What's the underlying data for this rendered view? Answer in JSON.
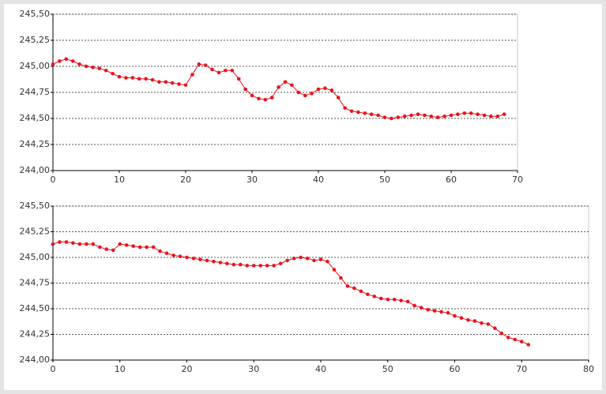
{
  "chart_data": [
    {
      "type": "line",
      "grid": true,
      "x": [
        0,
        1,
        2,
        3,
        4,
        5,
        6,
        7,
        8,
        9,
        10,
        11,
        12,
        13,
        14,
        15,
        16,
        17,
        18,
        19,
        20,
        21,
        22,
        23,
        24,
        25,
        26,
        27,
        28,
        29,
        30,
        31,
        32,
        33,
        34,
        35,
        36,
        37,
        38,
        39,
        40,
        41,
        42,
        43,
        44,
        45,
        46,
        47,
        48,
        49,
        50,
        51,
        52,
        53,
        54,
        55,
        56,
        57,
        58,
        59,
        60,
        61,
        62,
        63,
        64,
        65,
        66,
        67,
        68
      ],
      "series": [
        {
          "color": "#e8141e",
          "values": [
            245.02,
            245.05,
            245.07,
            245.05,
            245.02,
            245.0,
            244.99,
            244.98,
            244.96,
            244.93,
            244.9,
            244.89,
            244.89,
            244.88,
            244.88,
            244.87,
            244.85,
            244.85,
            244.84,
            244.83,
            244.82,
            244.92,
            245.02,
            245.01,
            244.97,
            244.94,
            244.96,
            244.96,
            244.88,
            244.78,
            244.72,
            244.69,
            244.68,
            244.7,
            244.8,
            244.85,
            244.82,
            244.75,
            244.72,
            244.74,
            244.78,
            244.79,
            244.77,
            244.7,
            244.6,
            244.57,
            244.56,
            244.55,
            244.54,
            244.53,
            244.51,
            244.5,
            244.51,
            244.52,
            244.53,
            244.54,
            244.53,
            244.52,
            244.51,
            244.52,
            244.53,
            244.54,
            244.55,
            244.55,
            244.54,
            244.53,
            244.52,
            244.52,
            244.54
          ]
        }
      ],
      "xlim": [
        0,
        70
      ],
      "xticks": [
        0,
        10,
        20,
        30,
        40,
        50,
        60,
        70
      ],
      "ylim": [
        244,
        245.5
      ],
      "yticks": [
        {
          "value": 244,
          "label": "244,00"
        },
        {
          "value": 244.25,
          "label": "244,25"
        },
        {
          "value": 244.5,
          "label": "244,50"
        },
        {
          "value": 244.75,
          "label": "244,75"
        },
        {
          "value": 245,
          "label": "245,00"
        },
        {
          "value": 245.25,
          "label": "245,25"
        },
        {
          "value": 245.5,
          "label": "245,50"
        }
      ]
    },
    {
      "type": "line",
      "grid": true,
      "x": [
        0,
        1,
        2,
        3,
        4,
        5,
        6,
        7,
        8,
        9,
        10,
        11,
        12,
        13,
        14,
        15,
        16,
        17,
        18,
        19,
        20,
        21,
        22,
        23,
        24,
        25,
        26,
        27,
        28,
        29,
        30,
        31,
        32,
        33,
        34,
        35,
        36,
        37,
        38,
        39,
        40,
        41,
        42,
        43,
        44,
        45,
        46,
        47,
        48,
        49,
        50,
        51,
        52,
        53,
        54,
        55,
        56,
        57,
        58,
        59,
        60,
        61,
        62,
        63,
        64,
        65,
        66,
        67,
        68,
        69,
        70,
        71
      ],
      "series": [
        {
          "color": "#e8141e",
          "values": [
            245.13,
            245.15,
            245.15,
            245.14,
            245.13,
            245.13,
            245.13,
            245.1,
            245.08,
            245.07,
            245.13,
            245.12,
            245.11,
            245.1,
            245.1,
            245.1,
            245.06,
            245.04,
            245.02,
            245.01,
            245.0,
            244.99,
            244.98,
            244.97,
            244.96,
            244.95,
            244.94,
            244.93,
            244.93,
            244.92,
            244.92,
            244.92,
            244.92,
            244.92,
            244.94,
            244.97,
            244.99,
            245.0,
            244.99,
            244.97,
            244.98,
            244.96,
            244.88,
            244.8,
            244.72,
            244.7,
            244.67,
            244.64,
            244.62,
            244.6,
            244.59,
            244.59,
            244.58,
            244.57,
            244.53,
            244.51,
            244.49,
            244.48,
            244.47,
            244.46,
            244.43,
            244.41,
            244.39,
            244.38,
            244.36,
            244.35,
            244.31,
            244.26,
            244.22,
            244.2,
            244.18,
            244.15
          ]
        }
      ],
      "xlim": [
        0,
        80
      ],
      "xticks": [
        0,
        10,
        20,
        30,
        40,
        50,
        60,
        70,
        80
      ],
      "ylim": [
        244,
        245.5
      ],
      "yticks": [
        {
          "value": 244,
          "label": "244,00"
        },
        {
          "value": 244.25,
          "label": "244,25"
        },
        {
          "value": 244.5,
          "label": "244,50"
        },
        {
          "value": 244.75,
          "label": "244,75"
        },
        {
          "value": 245,
          "label": "245,00"
        },
        {
          "value": 245.25,
          "label": "245,25"
        },
        {
          "value": 245.5,
          "label": "245,50"
        }
      ]
    }
  ]
}
